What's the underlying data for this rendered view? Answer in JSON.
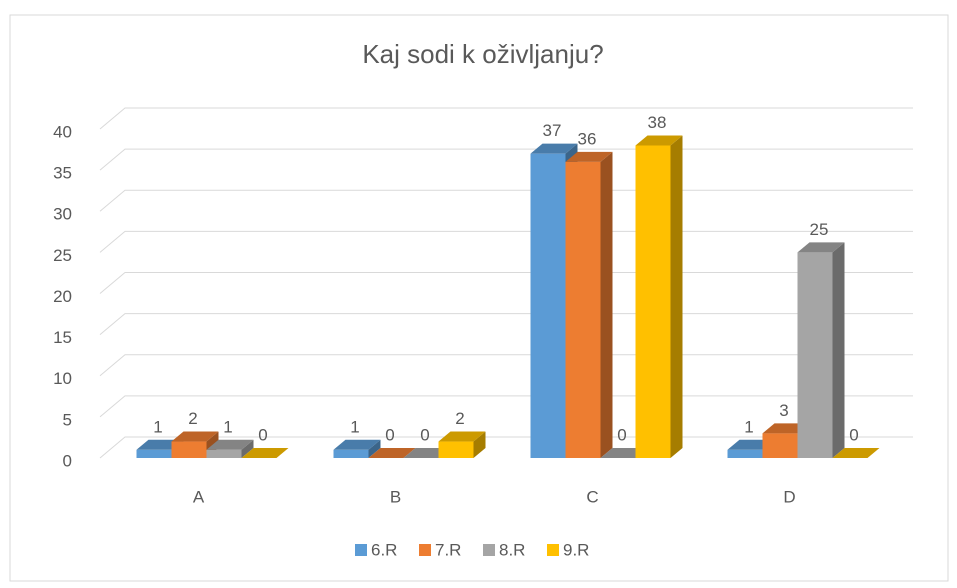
{
  "chart_data": {
    "type": "bar3d",
    "title": "Kaj sodi k oživljanju?",
    "categories": [
      "A",
      "B",
      "C",
      "D"
    ],
    "series": [
      {
        "name": "6.R",
        "color": "#5b9bd5",
        "values": [
          1,
          1,
          37,
          1
        ]
      },
      {
        "name": "7.R",
        "color": "#ed7d31",
        "values": [
          2,
          0,
          36,
          3
        ]
      },
      {
        "name": "8.R",
        "color": "#a5a5a5",
        "values": [
          1,
          0,
          0,
          25
        ]
      },
      {
        "name": "9.R",
        "color": "#ffc000",
        "values": [
          0,
          2,
          38,
          0
        ]
      }
    ],
    "ylim": [
      0,
      40
    ],
    "yticks": [
      0,
      5,
      10,
      15,
      20,
      25,
      30,
      35,
      40
    ],
    "grid": true,
    "legend": "bottom"
  }
}
